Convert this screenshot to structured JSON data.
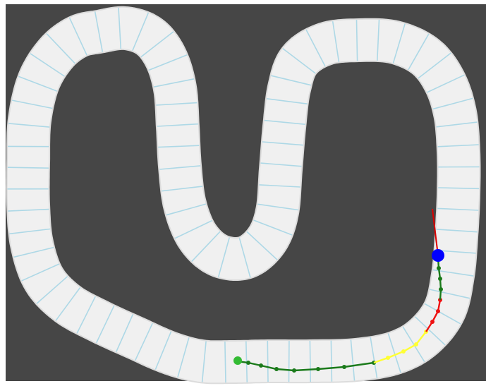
{
  "colors": {
    "background": "#464646",
    "track_surface": "#f0f0f0",
    "track_edge": "#dcdcdc",
    "checkpoint": "#add8e6",
    "path_green": "#1a7a1a",
    "path_yellow": "#ffff33",
    "path_red": "#ee1111",
    "heading": "#dd0000",
    "car": "#0000ff",
    "start": "#33bb33"
  },
  "icons": {
    "car": "car-marker-icon",
    "start": "start-marker-icon"
  },
  "checkpoint_count": 78,
  "segments": [
    {
      "name": "travelled-segment",
      "color_key": "path_green"
    },
    {
      "name": "caution-segment",
      "color_key": "path_yellow"
    },
    {
      "name": "warning-segment",
      "color_key": "path_red"
    },
    {
      "name": "recent-segment",
      "color_key": "path_green"
    }
  ]
}
